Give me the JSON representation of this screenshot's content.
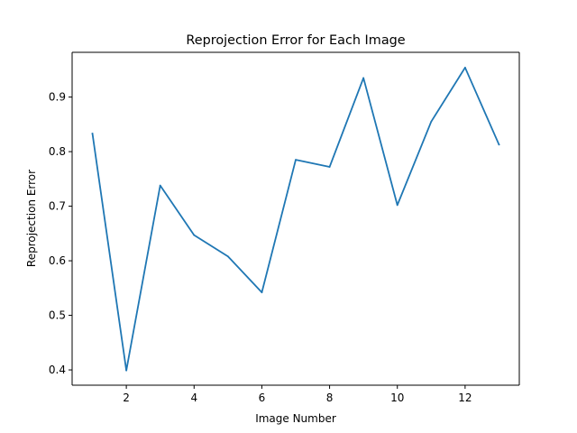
{
  "chart_data": {
    "type": "line",
    "title": "Reprojection Error for Each Image",
    "xlabel": "Image Number",
    "ylabel": "Reprojection Error",
    "x": [
      1,
      2,
      3,
      4,
      5,
      6,
      7,
      8,
      9,
      10,
      11,
      12,
      13
    ],
    "series": [
      {
        "values": [
          0.833,
          0.399,
          0.738,
          0.647,
          0.608,
          0.542,
          0.785,
          0.772,
          0.935,
          0.702,
          0.855,
          0.954,
          0.813
        ],
        "color": "#1f77b4"
      }
    ],
    "xlim": [
      0.4,
      13.6
    ],
    "ylim": [
      0.372,
      0.982
    ],
    "xticks": [
      2,
      4,
      6,
      8,
      10,
      12
    ],
    "yticks": [
      0.4,
      0.5,
      0.6,
      0.7,
      0.8,
      0.9
    ],
    "xtick_labels": [
      "2",
      "4",
      "6",
      "8",
      "10",
      "12"
    ],
    "ytick_labels": [
      "0.4",
      "0.5",
      "0.6",
      "0.7",
      "0.8",
      "0.9"
    ],
    "grid": false,
    "legend": "none"
  }
}
